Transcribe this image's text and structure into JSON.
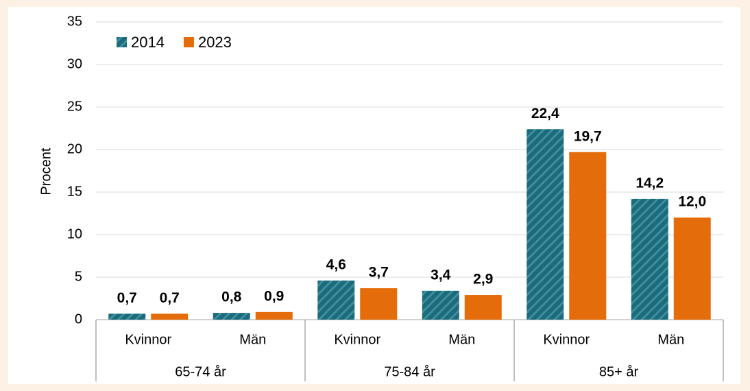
{
  "chart_data": {
    "type": "bar",
    "y_label": "Procent",
    "categories": [
      "Kvinnor",
      "Män",
      "Kvinnor",
      "Män",
      "Kvinnor",
      "Män"
    ],
    "groups": [
      "65-74 år",
      "75-84 år",
      "85+ år"
    ],
    "series": [
      {
        "name": "2014",
        "color": "#1b6b7c",
        "hatch": true,
        "values": [
          0.7,
          0.8,
          4.6,
          3.4,
          22.4,
          14.2
        ],
        "value_labels": [
          "0,7",
          "0,8",
          "4,6",
          "3,4",
          "22,4",
          "14,2"
        ]
      },
      {
        "name": "2023",
        "color": "#e46c0a",
        "hatch": false,
        "values": [
          0.7,
          0.9,
          3.7,
          2.9,
          19.7,
          12.0
        ],
        "value_labels": [
          "0,7",
          "0,9",
          "3,7",
          "2,9",
          "19,7",
          "12,0"
        ]
      }
    ],
    "ylim": [
      0,
      35
    ],
    "yticks": [
      0,
      5,
      10,
      15,
      20,
      25,
      30,
      35
    ],
    "grid": true,
    "legend": "top-left"
  }
}
